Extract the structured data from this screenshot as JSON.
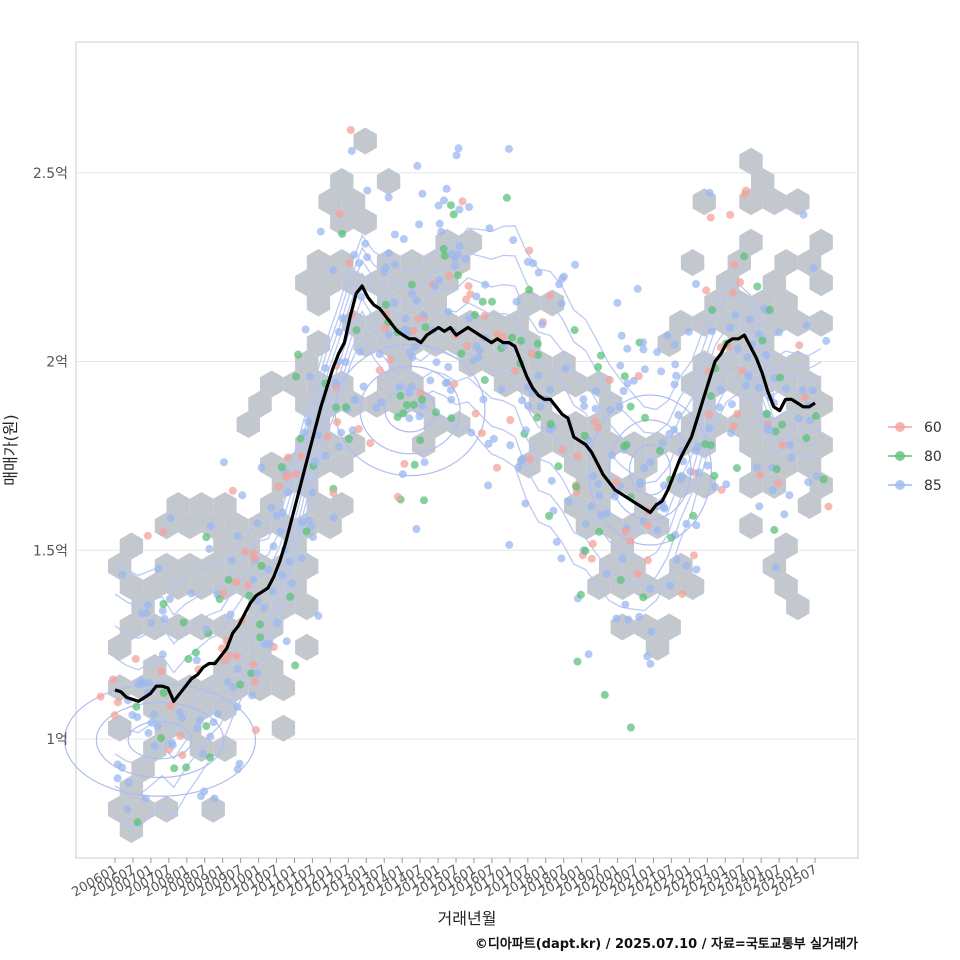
{
  "chart_data": {
    "type": "scatter",
    "xlabel": "거래년월",
    "ylabel": "매매가(원)",
    "x_ticks": [
      "200601",
      "200607",
      "200701",
      "200707",
      "200801",
      "200807",
      "200901",
      "200907",
      "201001",
      "201007",
      "201101",
      "201107",
      "201201",
      "201207",
      "201301",
      "201307",
      "201401",
      "201407",
      "201501",
      "201507",
      "201601",
      "201607",
      "201701",
      "201707",
      "201801",
      "201807",
      "201901",
      "201907",
      "202001",
      "202007",
      "202101",
      "202107",
      "202201",
      "202207",
      "202301",
      "202307",
      "202401",
      "202407",
      "202501",
      "202507"
    ],
    "y_ticks": [
      {
        "value": 1.0,
        "label": "1억"
      },
      {
        "value": 1.5,
        "label": "1.5억"
      },
      {
        "value": 2.0,
        "label": "2억"
      },
      {
        "value": 2.5,
        "label": "2.5억"
      }
    ],
    "ylim": [
      0.7,
      2.84
    ],
    "xlim": [
      -4,
      43
    ],
    "legend": {
      "position": "right",
      "entries": [
        {
          "label": "60",
          "color": "#f4a29b"
        },
        {
          "label": "80",
          "color": "#5cc17a"
        },
        {
          "label": "85",
          "color": "#9bb8f0"
        }
      ]
    },
    "trend_line": {
      "name": "moving-average",
      "color": "#000000",
      "points": [
        [
          0,
          1.13
        ],
        [
          0.5,
          1.125
        ],
        [
          1,
          1.11
        ],
        [
          1.5,
          1.105
        ],
        [
          2,
          1.1
        ],
        [
          2.5,
          1.11
        ],
        [
          3,
          1.12
        ],
        [
          3.5,
          1.14
        ],
        [
          4,
          1.14
        ],
        [
          4.5,
          1.135
        ],
        [
          5,
          1.1
        ],
        [
          5.5,
          1.12
        ],
        [
          6,
          1.14
        ],
        [
          6.5,
          1.16
        ],
        [
          7,
          1.17
        ],
        [
          7.5,
          1.19
        ],
        [
          8,
          1.2
        ],
        [
          8.5,
          1.2
        ],
        [
          9,
          1.22
        ],
        [
          9.5,
          1.24
        ],
        [
          10,
          1.28
        ],
        [
          10.5,
          1.3
        ],
        [
          11,
          1.33
        ],
        [
          11.5,
          1.36
        ],
        [
          12,
          1.38
        ],
        [
          12.5,
          1.39
        ],
        [
          13,
          1.4
        ],
        [
          13.5,
          1.43
        ],
        [
          14,
          1.47
        ],
        [
          14.5,
          1.52
        ],
        [
          15,
          1.58
        ],
        [
          15.5,
          1.64
        ],
        [
          16,
          1.7
        ],
        [
          16.5,
          1.76
        ],
        [
          17,
          1.82
        ],
        [
          17.5,
          1.88
        ],
        [
          18,
          1.93
        ],
        [
          18.5,
          1.98
        ],
        [
          19,
          2.02
        ],
        [
          19.5,
          2.05
        ],
        [
          20,
          2.12
        ],
        [
          20.5,
          2.18
        ],
        [
          21,
          2.2
        ],
        [
          21.5,
          2.17
        ],
        [
          22,
          2.15
        ],
        [
          22.5,
          2.14
        ],
        [
          23,
          2.12
        ],
        [
          23.5,
          2.1
        ],
        [
          24,
          2.08
        ],
        [
          24.5,
          2.07
        ],
        [
          25,
          2.06
        ],
        [
          25.5,
          2.06
        ],
        [
          26,
          2.05
        ],
        [
          26.5,
          2.07
        ],
        [
          27,
          2.08
        ],
        [
          27.5,
          2.09
        ],
        [
          28,
          2.08
        ],
        [
          28.5,
          2.09
        ],
        [
          29,
          2.07
        ],
        [
          29.5,
          2.08
        ],
        [
          30,
          2.09
        ],
        [
          30.5,
          2.08
        ],
        [
          31,
          2.07
        ],
        [
          31.5,
          2.06
        ],
        [
          32,
          2.05
        ],
        [
          32.5,
          2.06
        ],
        [
          33,
          2.05
        ],
        [
          33.5,
          2.05
        ],
        [
          34,
          2.04
        ],
        [
          34.5,
          2.0
        ],
        [
          35,
          1.96
        ],
        [
          35.5,
          1.93
        ],
        [
          36,
          1.91
        ],
        [
          36.5,
          1.9
        ],
        [
          37,
          1.9
        ],
        [
          37.5,
          1.88
        ],
        [
          38,
          1.86
        ],
        [
          38.5,
          1.85
        ],
        [
          39,
          1.8
        ],
        [
          39.5,
          1.79
        ],
        [
          40,
          1.78
        ],
        [
          40.5,
          1.76
        ],
        [
          41,
          1.73
        ],
        [
          41.5,
          1.7
        ],
        [
          42,
          1.68
        ],
        [
          42.5,
          1.66
        ],
        [
          43,
          1.65
        ],
        [
          43.5,
          1.64
        ],
        [
          44,
          1.63
        ],
        [
          44.5,
          1.62
        ],
        [
          45,
          1.61
        ],
        [
          45.5,
          1.6
        ],
        [
          46,
          1.62
        ],
        [
          46.5,
          1.63
        ],
        [
          47,
          1.66
        ],
        [
          47.5,
          1.7
        ],
        [
          48,
          1.74
        ],
        [
          48.5,
          1.77
        ],
        [
          49,
          1.8
        ],
        [
          49.5,
          1.85
        ],
        [
          50,
          1.9
        ],
        [
          50.5,
          1.95
        ],
        [
          51,
          2.0
        ],
        [
          51.5,
          2.02
        ],
        [
          52,
          2.05
        ],
        [
          52.5,
          2.06
        ],
        [
          53,
          2.06
        ],
        [
          53.5,
          2.07
        ],
        [
          54,
          2.04
        ],
        [
          54.5,
          2.01
        ],
        [
          55,
          1.97
        ],
        [
          55.5,
          1.92
        ],
        [
          56,
          1.88
        ],
        [
          56.5,
          1.87
        ],
        [
          57,
          1.9
        ],
        [
          57.5,
          1.9
        ],
        [
          58,
          1.89
        ],
        [
          58.5,
          1.88
        ],
        [
          59,
          1.88
        ],
        [
          59.5,
          1.89
        ]
      ]
    },
    "density_center": "#7c8df0"
  },
  "credit": "©디아파트(dapt.kr) / 2025.07.10 / 자료=국토교통부 실거래가"
}
